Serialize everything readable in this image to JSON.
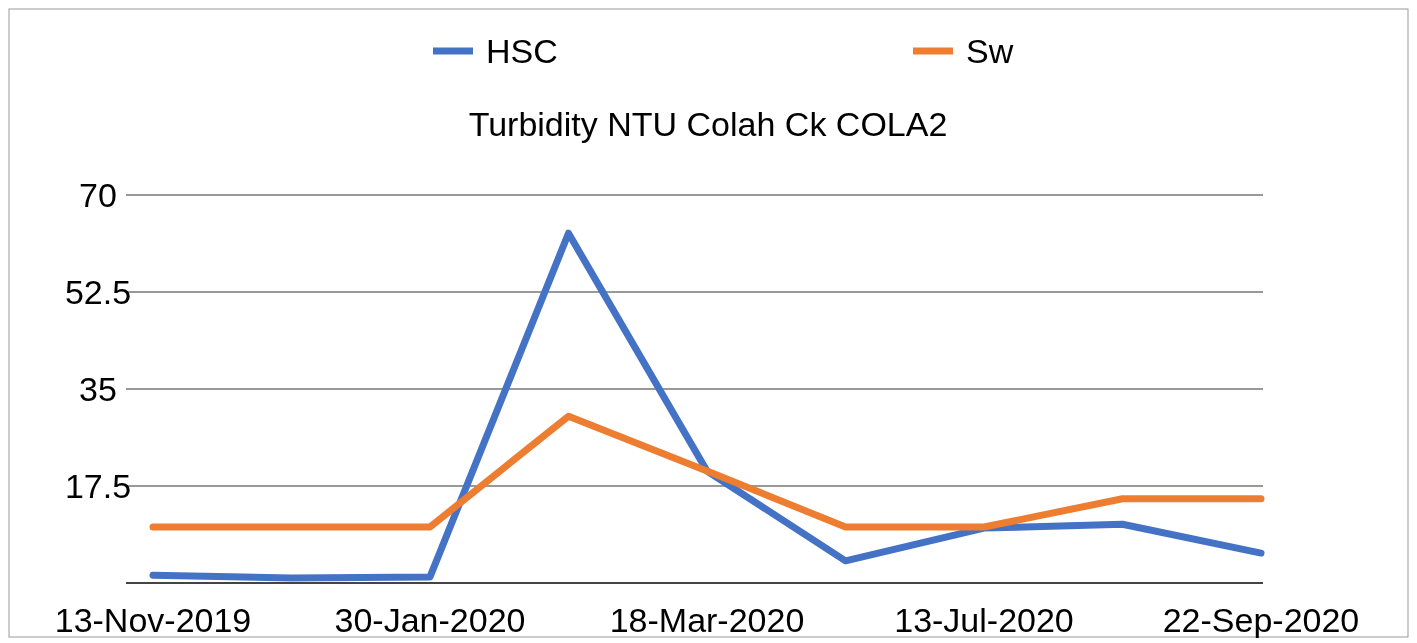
{
  "chart_data": {
    "type": "line",
    "title": "Turbidity NTU Colah Ck COLA2",
    "categories": [
      "13-Nov-2019",
      null,
      "30-Jan-2020",
      null,
      "18-Mar-2020",
      null,
      "13-Jul-2020",
      null,
      "22-Sep-2020"
    ],
    "series": [
      {
        "name": "HSC",
        "color": "#4472c4",
        "values": [
          1.4,
          0.9,
          1.1,
          63.1,
          20.2,
          4.0,
          9.9,
          10.6,
          5.4
        ]
      },
      {
        "name": "Sw",
        "color": "#ed7d31",
        "values": [
          10.1,
          10.1,
          10.1,
          30.1,
          20.2,
          10.1,
          10.1,
          15.2,
          15.2
        ]
      }
    ],
    "ylim": [
      0,
      70
    ],
    "yticks": [
      17.5,
      35,
      52.5,
      70
    ],
    "grid": "y",
    "legend": "top",
    "marker": "none",
    "line_style": "solid"
  }
}
